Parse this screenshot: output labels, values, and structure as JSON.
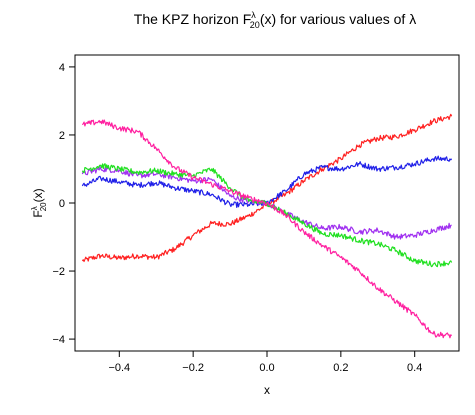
{
  "chart_data": {
    "type": "line",
    "title": {
      "prefix": "The KPZ horizon F",
      "sup": "λ",
      "sub": "20",
      "suffix": "(x) for various values of λ"
    },
    "xlabel": "x",
    "ylabel": {
      "base": "F",
      "sup": "λ",
      "sub": "20",
      "suffix": "(x)"
    },
    "xlim": [
      -0.52,
      0.52
    ],
    "ylim": [
      -4.35,
      4.35
    ],
    "x_ticks": [
      -0.4,
      -0.2,
      0.0,
      0.2,
      0.4
    ],
    "x_tick_labels": [
      "−0.4",
      "−0.2",
      "0.0",
      "0.2",
      "0.4"
    ],
    "y_ticks": [
      -4,
      -2,
      0,
      2,
      4
    ],
    "y_tick_labels": [
      "−4",
      "−2",
      "0",
      "2",
      "4"
    ],
    "x_range": [
      -0.5,
      0.5
    ],
    "series": [
      {
        "color": "#ff2020",
        "values": [
          [
            -0.5,
            -1.7
          ],
          [
            -0.45,
            -1.55
          ],
          [
            -0.4,
            -1.62
          ],
          [
            -0.35,
            -1.55
          ],
          [
            -0.3,
            -1.6
          ],
          [
            -0.25,
            -1.35
          ],
          [
            -0.2,
            -0.95
          ],
          [
            -0.15,
            -0.6
          ],
          [
            -0.1,
            -0.62
          ],
          [
            -0.05,
            -0.38
          ],
          [
            0.0,
            -0.05
          ],
          [
            0.05,
            0.25
          ],
          [
            0.1,
            0.65
          ],
          [
            0.15,
            1.0
          ],
          [
            0.2,
            1.3
          ],
          [
            0.25,
            1.7
          ],
          [
            0.3,
            1.9
          ],
          [
            0.35,
            1.95
          ],
          [
            0.4,
            2.15
          ],
          [
            0.45,
            2.4
          ],
          [
            0.5,
            2.55
          ]
        ]
      },
      {
        "color": "#2020e8",
        "values": [
          [
            -0.5,
            0.5
          ],
          [
            -0.45,
            0.72
          ],
          [
            -0.4,
            0.62
          ],
          [
            -0.35,
            0.52
          ],
          [
            -0.3,
            0.6
          ],
          [
            -0.25,
            0.45
          ],
          [
            -0.2,
            0.35
          ],
          [
            -0.15,
            0.25
          ],
          [
            -0.1,
            -0.05
          ],
          [
            -0.05,
            -0.05
          ],
          [
            0.0,
            0.0
          ],
          [
            0.05,
            0.35
          ],
          [
            0.1,
            0.85
          ],
          [
            0.15,
            1.05
          ],
          [
            0.2,
            1.0
          ],
          [
            0.25,
            1.15
          ],
          [
            0.3,
            1.0
          ],
          [
            0.35,
            1.05
          ],
          [
            0.4,
            1.15
          ],
          [
            0.45,
            1.3
          ],
          [
            0.5,
            1.3
          ]
        ]
      },
      {
        "color": "#a030f0",
        "values": [
          [
            -0.5,
            0.85
          ],
          [
            -0.45,
            1.0
          ],
          [
            -0.4,
            0.95
          ],
          [
            -0.35,
            0.8
          ],
          [
            -0.3,
            0.85
          ],
          [
            -0.25,
            0.75
          ],
          [
            -0.2,
            0.65
          ],
          [
            -0.15,
            0.7
          ],
          [
            -0.1,
            0.2
          ],
          [
            -0.05,
            0.05
          ],
          [
            0.0,
            0.0
          ],
          [
            0.05,
            -0.3
          ],
          [
            0.1,
            -0.55
          ],
          [
            0.15,
            -0.75
          ],
          [
            0.2,
            -0.7
          ],
          [
            0.25,
            -0.85
          ],
          [
            0.3,
            -0.8
          ],
          [
            0.35,
            -1.0
          ],
          [
            0.4,
            -0.95
          ],
          [
            0.45,
            -0.8
          ],
          [
            0.5,
            -0.65
          ]
        ]
      },
      {
        "color": "#20e020",
        "values": [
          [
            -0.5,
            0.95
          ],
          [
            -0.45,
            1.1
          ],
          [
            -0.4,
            1.0
          ],
          [
            -0.35,
            0.9
          ],
          [
            -0.3,
            0.95
          ],
          [
            -0.25,
            0.85
          ],
          [
            -0.2,
            0.8
          ],
          [
            -0.15,
            1.0
          ],
          [
            -0.1,
            0.45
          ],
          [
            -0.05,
            0.05
          ],
          [
            0.0,
            0.0
          ],
          [
            0.05,
            -0.3
          ],
          [
            0.1,
            -0.6
          ],
          [
            0.15,
            -0.9
          ],
          [
            0.2,
            -0.95
          ],
          [
            0.25,
            -1.1
          ],
          [
            0.3,
            -1.2
          ],
          [
            0.35,
            -1.4
          ],
          [
            0.4,
            -1.7
          ],
          [
            0.45,
            -1.8
          ],
          [
            0.5,
            -1.75
          ]
        ]
      },
      {
        "color": "#ff20a0",
        "values": [
          [
            -0.5,
            2.3
          ],
          [
            -0.45,
            2.4
          ],
          [
            -0.4,
            2.2
          ],
          [
            -0.35,
            2.1
          ],
          [
            -0.3,
            1.6
          ],
          [
            -0.25,
            1.05
          ],
          [
            -0.2,
            0.75
          ],
          [
            -0.15,
            0.55
          ],
          [
            -0.1,
            0.35
          ],
          [
            -0.05,
            0.15
          ],
          [
            0.0,
            0.0
          ],
          [
            0.05,
            -0.35
          ],
          [
            0.1,
            -0.85
          ],
          [
            0.15,
            -1.25
          ],
          [
            0.2,
            -1.6
          ],
          [
            0.25,
            -2.0
          ],
          [
            0.3,
            -2.5
          ],
          [
            0.35,
            -2.9
          ],
          [
            0.4,
            -3.3
          ],
          [
            0.45,
            -3.85
          ],
          [
            0.5,
            -3.9
          ]
        ]
      }
    ]
  }
}
